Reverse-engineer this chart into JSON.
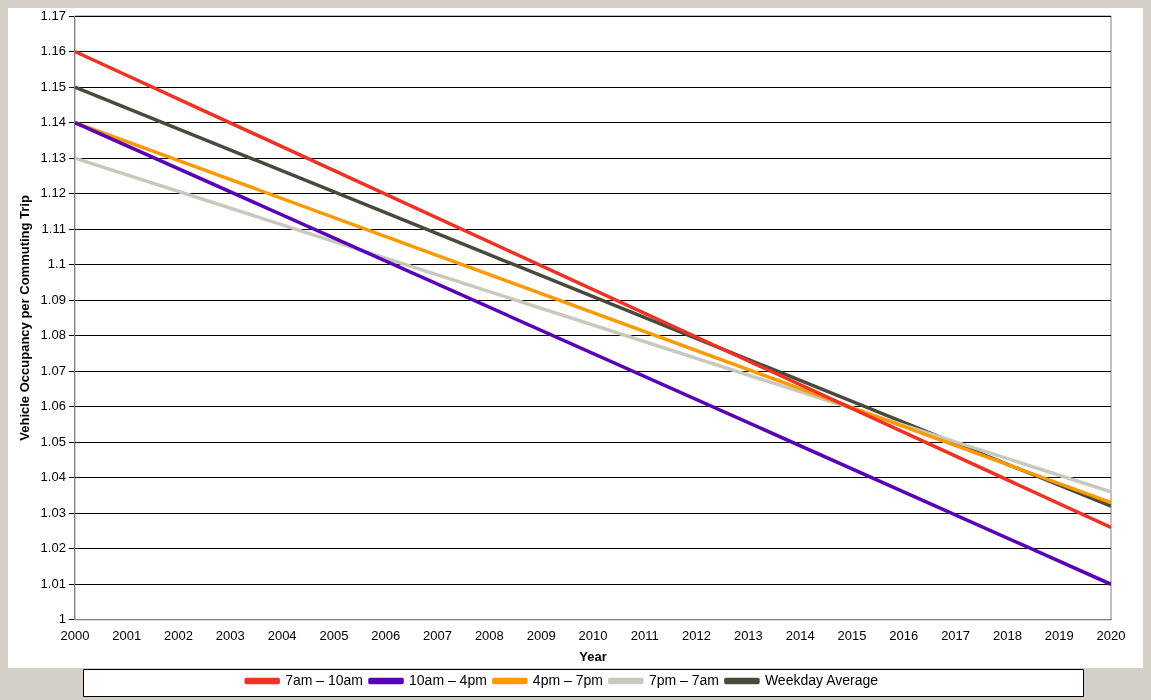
{
  "chart_data": {
    "type": "line",
    "xlabel": "Year",
    "ylabel": "Vehicle Occupancy per Commuting Trip",
    "x": [
      2000,
      2020
    ],
    "series": [
      {
        "name": "7am – 10am",
        "color": "#ee3224",
        "values": [
          1.16,
          1.026
        ]
      },
      {
        "name": "10am – 4pm",
        "color": "#5a00b4",
        "values": [
          1.14,
          1.01
        ]
      },
      {
        "name": "4pm – 7pm",
        "color": "#ff9900",
        "values": [
          1.14,
          1.033
        ]
      },
      {
        "name": "7pm – 7am",
        "color": "#c8c8bc",
        "values": [
          1.13,
          1.036
        ]
      },
      {
        "name": "Weekday Average",
        "color": "#4a4a3c",
        "values": [
          1.15,
          1.032
        ]
      }
    ],
    "xlim": [
      2000,
      2020
    ],
    "xticks": [
      2000,
      2001,
      2002,
      2003,
      2004,
      2005,
      2006,
      2007,
      2008,
      2009,
      2010,
      2011,
      2012,
      2013,
      2014,
      2015,
      2016,
      2017,
      2018,
      2019,
      2020
    ],
    "ylim": [
      1,
      1.17
    ],
    "yticks": [
      1,
      1.01,
      1.02,
      1.03,
      1.04,
      1.05,
      1.06,
      1.07,
      1.08,
      1.09,
      1.1,
      1.11,
      1.12,
      1.13,
      1.14,
      1.15,
      1.16,
      1.17
    ],
    "grid": "y",
    "legend": "bottom",
    "marker": "none",
    "line_style": "solid"
  }
}
